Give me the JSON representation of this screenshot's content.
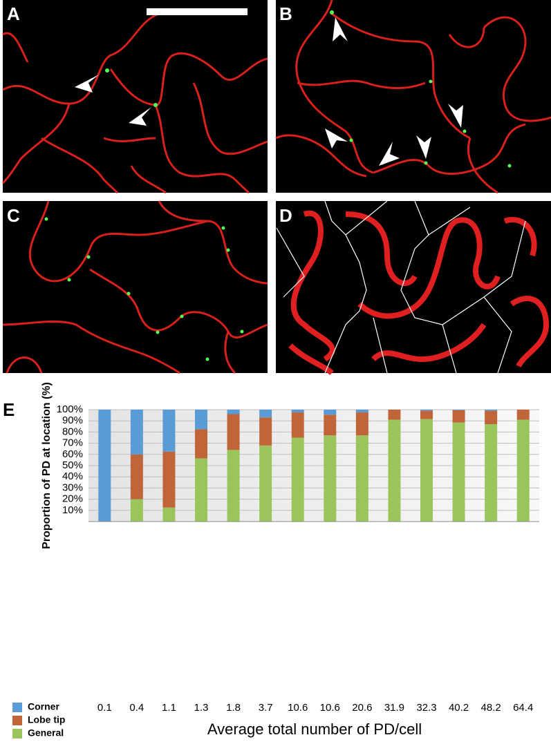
{
  "panel_labels": [
    "A",
    "B",
    "C",
    "D",
    "E"
  ],
  "chart_data": {
    "type": "stacked-bar",
    "ylabel": "Proportion of PD at location (%)",
    "xlabel": "Average total number of PD/cell",
    "categories": [
      "0.1",
      "0.4",
      "1.1",
      "1.3",
      "1.8",
      "3.7",
      "10.6",
      "10.6",
      "20.6",
      "31.9",
      "32.3",
      "40.2",
      "48.2",
      "64.4"
    ],
    "series": [
      {
        "name": "Corner",
        "color": "#5b9bd5",
        "values": [
          100,
          40,
          37.5,
          17.5,
          4,
          7,
          2.5,
          4.5,
          2.5,
          0,
          1,
          0.5,
          1,
          0
        ]
      },
      {
        "name": "Lobe tip",
        "color": "#c0653a",
        "values": [
          0,
          40,
          50,
          26,
          32,
          25,
          22.5,
          18.5,
          20.5,
          9,
          7.5,
          11,
          12,
          9
        ]
      },
      {
        "name": "General",
        "color": "#9bc55b",
        "values": [
          0,
          20,
          12.5,
          56.5,
          64,
          68,
          75,
          77,
          77,
          91,
          91.5,
          88.5,
          87,
          91
        ]
      }
    ],
    "ylim": [
      0,
      100
    ],
    "yticks": [
      {
        "value": 10,
        "label": "10%"
      },
      {
        "value": 20,
        "label": "20%"
      },
      {
        "value": 30,
        "label": "30%"
      },
      {
        "value": 40,
        "label": "40%"
      },
      {
        "value": 50,
        "label": "50%"
      },
      {
        "value": 60,
        "label": "60%"
      },
      {
        "value": 70,
        "label": "70%"
      },
      {
        "value": 80,
        "label": "80%"
      },
      {
        "value": 90,
        "label": "90%"
      },
      {
        "value": 100,
        "label": "100%"
      }
    ],
    "grid": true,
    "legend": "bottom-left"
  }
}
